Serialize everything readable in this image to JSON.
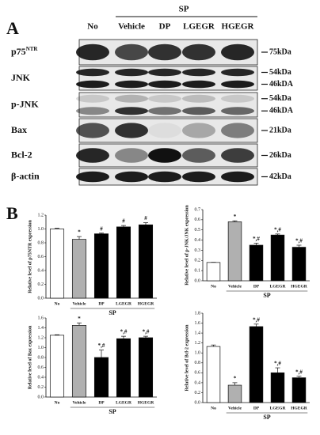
{
  "panel_a": {
    "label": "A",
    "group": "SP",
    "lanes": [
      "No",
      "Vehicle",
      "DP",
      "LGEGR",
      "HGEGR"
    ],
    "rows": [
      {
        "label": "p75",
        "sup": "NTR",
        "markers": [
          "75kDa"
        ]
      },
      {
        "label": "JNK",
        "markers": [
          "54kDa",
          "46kDA"
        ]
      },
      {
        "label": "p-JNK",
        "markers": [
          "54kDa",
          "46kDA"
        ]
      },
      {
        "label": "Bax",
        "markers": [
          "21kDa"
        ]
      },
      {
        "label": "Bcl-2",
        "markers": [
          "26kDa"
        ]
      },
      {
        "label": "β-actin",
        "markers": [
          "42kDa"
        ]
      }
    ]
  },
  "panel_b": {
    "label": "B"
  },
  "chart_data": [
    {
      "type": "bar",
      "ylabel": "Relative level of p75NTR expression",
      "categories": [
        "No",
        "Vehicle",
        "DP",
        "LGEGR",
        "HGEGR"
      ],
      "group_label": "SP",
      "values": [
        1.0,
        0.85,
        0.93,
        1.03,
        1.06
      ],
      "errors": [
        0.01,
        0.04,
        0.01,
        0.02,
        0.03
      ],
      "annotations": [
        null,
        "*",
        "#",
        "#",
        "#"
      ],
      "colors": [
        "#ffffff",
        "#b0b0b0",
        "#000000",
        "#000000",
        "#000000"
      ],
      "ylim": [
        0,
        1.2
      ],
      "yticks": [
        {
          "value": 0,
          "label": "0.0"
        },
        0.2,
        0.4,
        0.6,
        0.8,
        {
          "value": 1,
          "label": "1.0"
        },
        1.2
      ]
    },
    {
      "type": "bar",
      "ylabel": "Relative level of p-JNK/JNK expression",
      "categories": [
        "No",
        "Vehicle",
        "DP",
        "LGEGR",
        "HGEGR"
      ],
      "group_label": "SP",
      "values": [
        0.18,
        0.58,
        0.35,
        0.45,
        0.33
      ],
      "errors": [
        0.002,
        0.01,
        0.02,
        0.01,
        0.02
      ],
      "annotations": [
        null,
        "*",
        "*,#",
        "*,#",
        "*,#"
      ],
      "colors": [
        "#ffffff",
        "#b0b0b0",
        "#000000",
        "#000000",
        "#000000"
      ],
      "ylim": [
        0,
        0.7
      ],
      "yticks": [
        {
          "value": 0,
          "label": "0.0"
        },
        0.1,
        0.2,
        0.3,
        0.4,
        0.5,
        0.6,
        0.7
      ]
    },
    {
      "type": "bar",
      "ylabel": "Relative level of Bax expression",
      "categories": [
        "No",
        "Vehicle",
        "DP",
        "LGEGR",
        "HGEGR"
      ],
      "group_label": "SP",
      "values": [
        1.25,
        1.45,
        0.8,
        1.18,
        1.2
      ],
      "errors": [
        0.01,
        0.05,
        0.15,
        0.05,
        0.03
      ],
      "annotations": [
        null,
        "*",
        "*,#",
        "*,#",
        "*,#"
      ],
      "colors": [
        "#ffffff",
        "#b0b0b0",
        "#000000",
        "#000000",
        "#000000"
      ],
      "ylim": [
        0,
        1.6
      ],
      "yticks": [
        {
          "value": 0,
          "label": "0.0"
        },
        0.2,
        0.4,
        0.6,
        0.8,
        {
          "value": 1,
          "label": "1.0"
        },
        1.2,
        1.4,
        1.6
      ]
    },
    {
      "type": "bar",
      "ylabel": "Relative level of Bcl-2 expression",
      "categories": [
        "No",
        "Vehicle",
        "DP",
        "LGEGR",
        "HGEGR"
      ],
      "group_label": "SP",
      "values": [
        1.13,
        0.35,
        1.53,
        0.6,
        0.5
      ],
      "errors": [
        0.03,
        0.05,
        0.05,
        0.1,
        0.03
      ],
      "annotations": [
        null,
        "*",
        "*,#",
        "*,#",
        "*,#"
      ],
      "colors": [
        "#ffffff",
        "#b0b0b0",
        "#000000",
        "#000000",
        "#000000"
      ],
      "ylim": [
        0,
        1.8
      ],
      "yticks": [
        {
          "value": 0,
          "label": "0.0"
        },
        0.2,
        0.4,
        0.6,
        0.8,
        {
          "value": 1,
          "label": "1.0"
        },
        1.2,
        1.4,
        1.6,
        1.8
      ]
    }
  ]
}
